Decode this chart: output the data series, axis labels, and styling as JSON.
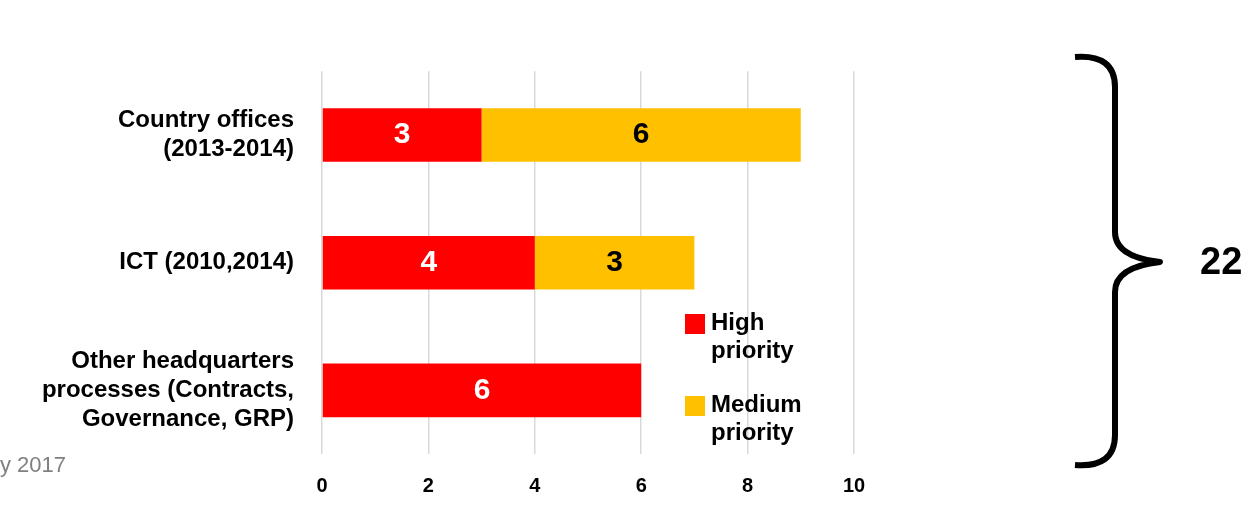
{
  "chart_data": {
    "type": "bar",
    "orientation": "horizontal",
    "stacked": true,
    "categories": [
      "Country offices (2013-2014)",
      "ICT (2010,2014)",
      "Other headquarters processes (Contracts, Governance, GRP)"
    ],
    "series": [
      {
        "name": "High priority",
        "color": "#ff0000",
        "values": [
          3,
          4,
          6
        ]
      },
      {
        "name": "Medium priority",
        "color": "#ffc000",
        "values": [
          6,
          3,
          null
        ]
      }
    ],
    "xlim": [
      0,
      10
    ],
    "xticks": [
      0,
      2,
      4,
      6,
      8,
      10
    ],
    "grid": "x",
    "legend": "right",
    "data_labels": true,
    "annotations": [
      "22",
      "y 2017"
    ]
  }
}
